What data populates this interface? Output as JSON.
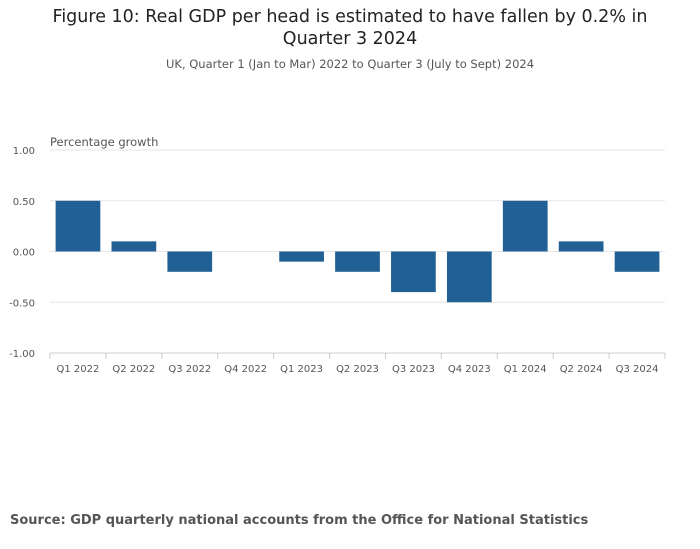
{
  "title": "Figure 10: Real GDP per head is estimated to have fallen by 0.2% in Quarter 3 2024",
  "subtitle": "UK, Quarter 1 (Jan to Mar) 2022 to Quarter 3 (July to Sept) 2024",
  "source": "Source: GDP quarterly national accounts from the Office for National Statistics",
  "colors": {
    "bar": "#206095",
    "grid": "#e6e6e6",
    "axis": "#cccccc",
    "tick_text": "#555555"
  },
  "chart_data": {
    "type": "bar",
    "title": "Figure 10: Real GDP per head is estimated to have fallen by 0.2% in Quarter 3 2024",
    "subtitle": "UK, Quarter 1 (Jan to Mar) 2022 to Quarter 3 (July to Sept) 2024",
    "ylabel": "Percentage growth",
    "xlabel": "",
    "categories": [
      "Q1 2022",
      "Q2 2022",
      "Q3 2022",
      "Q4 2022",
      "Q1 2023",
      "Q2 2023",
      "Q3 2023",
      "Q4 2023",
      "Q1 2024",
      "Q2 2024",
      "Q3 2024"
    ],
    "values": [
      0.5,
      0.1,
      -0.2,
      0.0,
      -0.1,
      -0.2,
      -0.4,
      -0.5,
      0.5,
      0.1,
      -0.2
    ],
    "ylim": [
      -1.0,
      1.0
    ],
    "yticks": [
      "1.00",
      "0.50",
      "0.00",
      "-0.50",
      "-1.00"
    ],
    "ytick_values": [
      1.0,
      0.5,
      0.0,
      -0.5,
      -1.0
    ],
    "grid": true,
    "legend": false
  }
}
